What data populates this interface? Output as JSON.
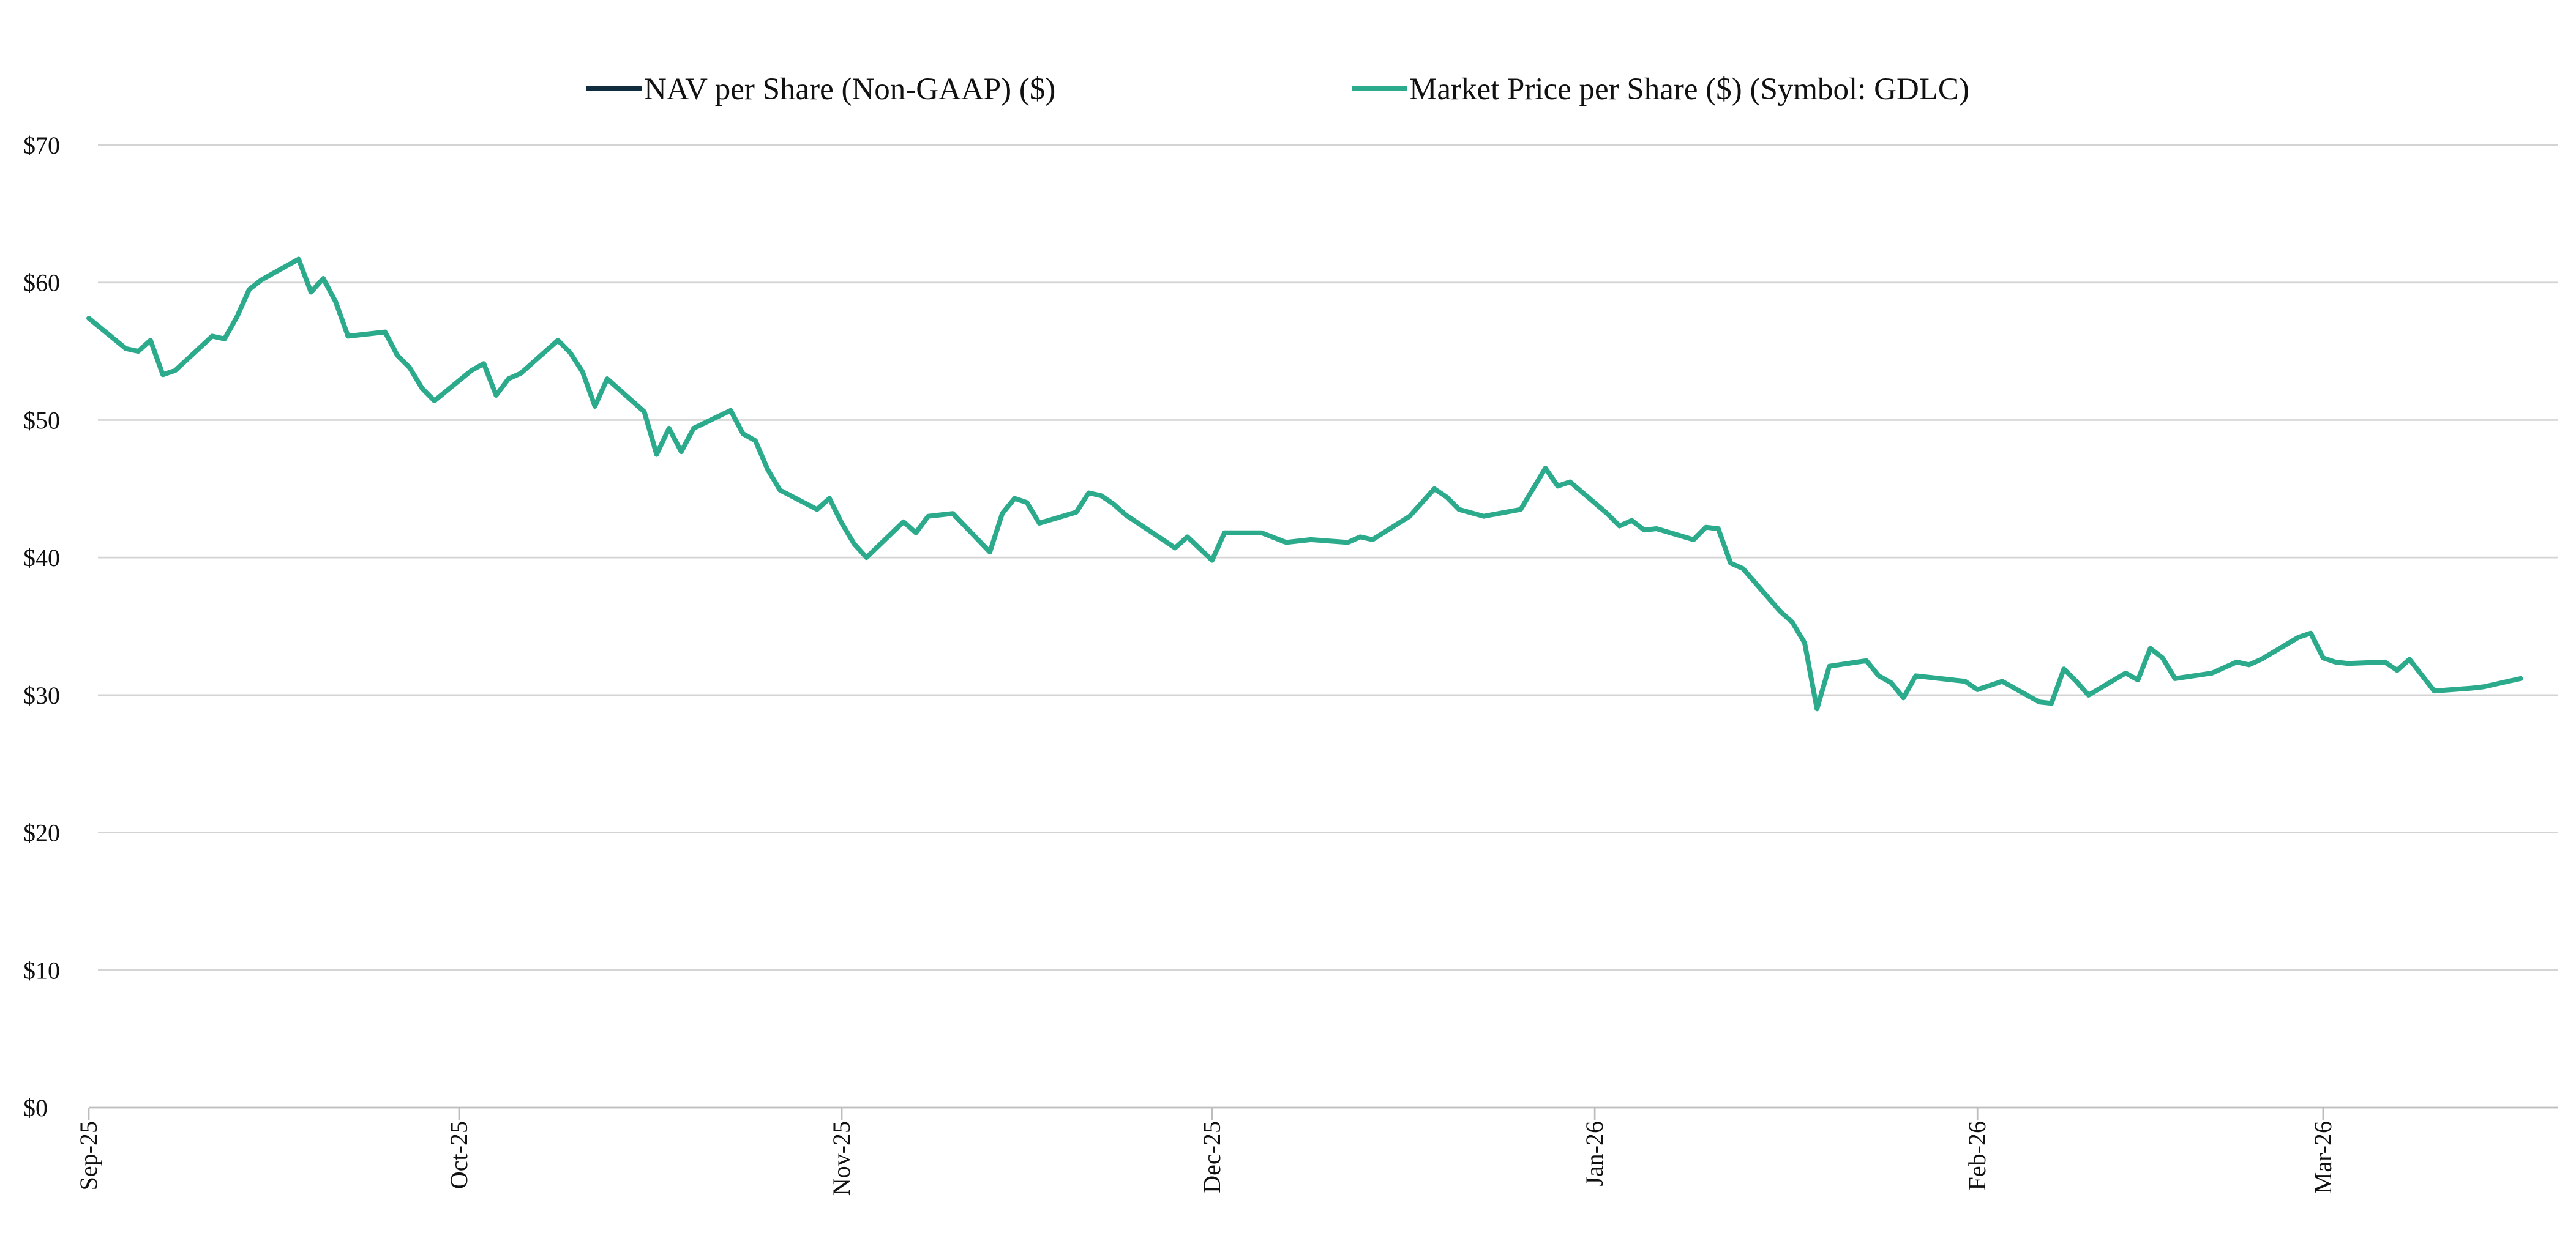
{
  "chart_data": {
    "type": "line",
    "title": "",
    "xlabel": "",
    "ylabel": "",
    "ylim": [
      0,
      70
    ],
    "yticks": [
      "$0",
      "$10",
      "$20",
      "$30",
      "$40",
      "$50",
      "$60",
      "$70"
    ],
    "x_ticks": [
      {
        "label": "Sep-25",
        "date": "2025-09-01"
      },
      {
        "label": "Oct-25",
        "date": "2025-10-01"
      },
      {
        "label": "Nov-25",
        "date": "2025-11-01"
      },
      {
        "label": "Dec-25",
        "date": "2025-12-01"
      },
      {
        "label": "Jan-26",
        "date": "2026-01-01"
      },
      {
        "label": "Feb-26",
        "date": "2026-02-01"
      },
      {
        "label": "Mar-26",
        "date": "2026-03-01"
      }
    ],
    "xlim": [
      "2025-09-01",
      "2026-03-20"
    ],
    "grid": true,
    "legend_position": "top",
    "series": [
      {
        "name": "NAV per Share (Non-GAAP) ($)",
        "color": "#0f2d3f",
        "points": []
      },
      {
        "name": "Market Price per Share ($) (Symbol: GDLC)",
        "color": "#2bab8c",
        "points": [
          [
            "2025-09-01",
            57.4
          ],
          [
            "2025-09-04",
            55.2
          ],
          [
            "2025-09-05",
            55.0
          ],
          [
            "2025-09-06",
            55.8
          ],
          [
            "2025-09-07",
            53.3
          ],
          [
            "2025-09-08",
            53.6
          ],
          [
            "2025-09-11",
            56.1
          ],
          [
            "2025-09-12",
            55.9
          ],
          [
            "2025-09-13",
            57.5
          ],
          [
            "2025-09-14",
            59.5
          ],
          [
            "2025-09-15",
            60.2
          ],
          [
            "2025-09-18",
            61.7
          ],
          [
            "2025-09-19",
            59.3
          ],
          [
            "2025-09-20",
            60.3
          ],
          [
            "2025-09-21",
            58.6
          ],
          [
            "2025-09-22",
            56.1
          ],
          [
            "2025-09-25",
            56.4
          ],
          [
            "2025-09-26",
            54.7
          ],
          [
            "2025-09-27",
            53.8
          ],
          [
            "2025-09-28",
            52.3
          ],
          [
            "2025-09-29",
            51.4
          ],
          [
            "2025-10-02",
            53.6
          ],
          [
            "2025-10-03",
            54.1
          ],
          [
            "2025-10-04",
            51.8
          ],
          [
            "2025-10-05",
            53.0
          ],
          [
            "2025-10-06",
            53.4
          ],
          [
            "2025-10-09",
            55.8
          ],
          [
            "2025-10-10",
            54.9
          ],
          [
            "2025-10-11",
            53.5
          ],
          [
            "2025-10-12",
            51.0
          ],
          [
            "2025-10-13",
            53.0
          ],
          [
            "2025-10-16",
            50.6
          ],
          [
            "2025-10-17",
            47.5
          ],
          [
            "2025-10-18",
            49.4
          ],
          [
            "2025-10-19",
            47.7
          ],
          [
            "2025-10-20",
            49.4
          ],
          [
            "2025-10-23",
            50.7
          ],
          [
            "2025-10-24",
            49.0
          ],
          [
            "2025-10-25",
            48.5
          ],
          [
            "2025-10-26",
            46.4
          ],
          [
            "2025-10-27",
            44.9
          ],
          [
            "2025-10-30",
            43.5
          ],
          [
            "2025-10-31",
            44.3
          ],
          [
            "2025-11-01",
            42.5
          ],
          [
            "2025-11-02",
            41.0
          ],
          [
            "2025-11-03",
            40.0
          ],
          [
            "2025-11-06",
            42.6
          ],
          [
            "2025-11-07",
            41.8
          ],
          [
            "2025-11-08",
            43.0
          ],
          [
            "2025-11-10",
            43.2
          ],
          [
            "2025-11-13",
            40.4
          ],
          [
            "2025-11-14",
            43.2
          ],
          [
            "2025-11-15",
            44.3
          ],
          [
            "2025-11-16",
            44.0
          ],
          [
            "2025-11-17",
            42.5
          ],
          [
            "2025-11-20",
            43.3
          ],
          [
            "2025-11-21",
            44.7
          ],
          [
            "2025-11-22",
            44.5
          ],
          [
            "2025-11-23",
            43.9
          ],
          [
            "2025-11-24",
            43.1
          ],
          [
            "2025-11-28",
            40.7
          ],
          [
            "2025-11-29",
            41.5
          ],
          [
            "2025-12-01",
            39.8
          ],
          [
            "2025-12-02",
            41.8
          ],
          [
            "2025-12-05",
            41.8
          ],
          [
            "2025-12-07",
            41.1
          ],
          [
            "2025-12-09",
            41.3
          ],
          [
            "2025-12-12",
            41.1
          ],
          [
            "2025-12-13",
            41.5
          ],
          [
            "2025-12-14",
            41.3
          ],
          [
            "2025-12-17",
            43.0
          ],
          [
            "2025-12-19",
            45.0
          ],
          [
            "2025-12-20",
            44.4
          ],
          [
            "2025-12-21",
            43.5
          ],
          [
            "2025-12-23",
            43.0
          ],
          [
            "2025-12-26",
            43.5
          ],
          [
            "2025-12-28",
            46.5
          ],
          [
            "2025-12-29",
            45.2
          ],
          [
            "2025-12-30",
            45.5
          ],
          [
            "2026-01-02",
            43.2
          ],
          [
            "2026-01-03",
            42.3
          ],
          [
            "2026-01-04",
            42.7
          ],
          [
            "2026-01-05",
            42.0
          ],
          [
            "2026-01-06",
            42.1
          ],
          [
            "2026-01-09",
            41.3
          ],
          [
            "2026-01-10",
            42.2
          ],
          [
            "2026-01-11",
            42.1
          ],
          [
            "2026-01-12",
            39.6
          ],
          [
            "2026-01-13",
            39.2
          ],
          [
            "2026-01-16",
            36.1
          ],
          [
            "2026-01-17",
            35.3
          ],
          [
            "2026-01-18",
            33.8
          ],
          [
            "2026-01-19",
            29.0
          ],
          [
            "2026-01-20",
            32.1
          ],
          [
            "2026-01-23",
            32.5
          ],
          [
            "2026-01-24",
            31.4
          ],
          [
            "2026-01-25",
            30.9
          ],
          [
            "2026-01-26",
            29.8
          ],
          [
            "2026-01-27",
            31.4
          ],
          [
            "2026-01-30",
            31.1
          ],
          [
            "2026-01-31",
            31.0
          ],
          [
            "2026-02-01",
            30.4
          ],
          [
            "2026-02-03",
            31.0
          ],
          [
            "2026-02-06",
            29.5
          ],
          [
            "2026-02-07",
            29.4
          ],
          [
            "2026-02-08",
            31.9
          ],
          [
            "2026-02-09",
            31.0
          ],
          [
            "2026-02-10",
            30.0
          ],
          [
            "2026-02-13",
            31.6
          ],
          [
            "2026-02-14",
            31.1
          ],
          [
            "2026-02-15",
            33.4
          ],
          [
            "2026-02-16",
            32.7
          ],
          [
            "2026-02-17",
            31.2
          ],
          [
            "2026-02-20",
            31.6
          ],
          [
            "2026-02-22",
            32.4
          ],
          [
            "2026-02-23",
            32.2
          ],
          [
            "2026-02-24",
            32.6
          ],
          [
            "2026-02-27",
            34.2
          ],
          [
            "2026-02-28",
            34.5
          ],
          [
            "2026-03-01",
            32.7
          ],
          [
            "2026-03-02",
            32.4
          ],
          [
            "2026-03-03",
            32.3
          ],
          [
            "2026-03-06",
            32.4
          ],
          [
            "2026-03-07",
            31.8
          ],
          [
            "2026-03-08",
            32.6
          ],
          [
            "2026-03-10",
            30.3
          ],
          [
            "2026-03-13",
            30.5
          ],
          [
            "2026-03-14",
            30.6
          ],
          [
            "2026-03-17",
            31.2
          ]
        ]
      }
    ]
  }
}
